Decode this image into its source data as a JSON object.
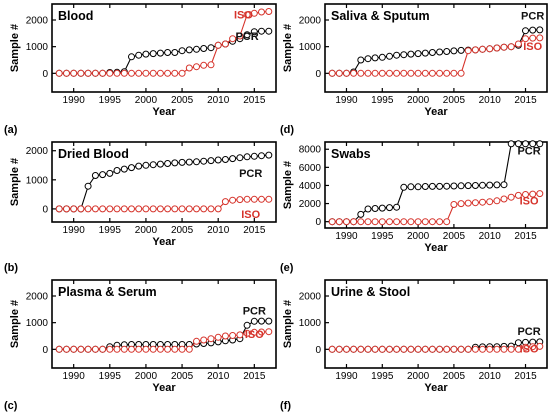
{
  "chart_data": [
    {
      "type": "line",
      "panel_label": "(a)",
      "title": "Blood",
      "xlabel": "Year",
      "ylabel": "Sample #",
      "xlim": [
        1987,
        2018
      ],
      "ylim": [
        -700,
        2600
      ],
      "xticks": [
        1990,
        1995,
        2000,
        2005,
        2010,
        2015
      ],
      "yticks": [
        0,
        1000,
        2000
      ],
      "x": [
        1988,
        1989,
        1990,
        1991,
        1992,
        1993,
        1994,
        1995,
        1996,
        1997,
        1998,
        1999,
        2000,
        2001,
        2002,
        2003,
        2004,
        2005,
        2006,
        2007,
        2008,
        2009,
        2010,
        2011,
        2012,
        2013,
        2014,
        2015,
        2016,
        2017
      ],
      "series": [
        {
          "name": "PCR",
          "color": "#000000",
          "values": [
            0,
            0,
            0,
            0,
            0,
            0,
            0,
            30,
            40,
            60,
            620,
            680,
            720,
            740,
            760,
            780,
            780,
            850,
            880,
            900,
            930,
            960,
            1050,
            1100,
            1200,
            1300,
            1450,
            1560,
            1580,
            1580
          ]
        },
        {
          "name": "ISO",
          "color": "#d6332b",
          "values": [
            0,
            0,
            0,
            0,
            0,
            0,
            0,
            0,
            0,
            0,
            0,
            0,
            0,
            0,
            0,
            0,
            0,
            0,
            200,
            250,
            300,
            320,
            1050,
            1100,
            1300,
            1400,
            2200,
            2250,
            2300,
            2320
          ]
        }
      ]
    },
    {
      "type": "line",
      "panel_label": "(b)",
      "title": "Dried Blood",
      "xlabel": "Year",
      "ylabel": "Sample #",
      "xlim": [
        1987,
        2018
      ],
      "ylim": [
        -450,
        2300
      ],
      "xticks": [
        1990,
        1995,
        2000,
        2005,
        2010,
        2015
      ],
      "yticks": [
        0,
        1000,
        2000
      ],
      "x": [
        1988,
        1989,
        1990,
        1991,
        1992,
        1993,
        1994,
        1995,
        1996,
        1997,
        1998,
        1999,
        2000,
        2001,
        2002,
        2003,
        2004,
        2005,
        2006,
        2007,
        2008,
        2009,
        2010,
        2011,
        2012,
        2013,
        2014,
        2015,
        2016,
        2017
      ],
      "series": [
        {
          "name": "PCR",
          "color": "#000000",
          "values": [
            0,
            0,
            0,
            0,
            780,
            1150,
            1180,
            1220,
            1320,
            1370,
            1420,
            1470,
            1500,
            1520,
            1540,
            1560,
            1580,
            1600,
            1610,
            1620,
            1640,
            1660,
            1680,
            1700,
            1730,
            1760,
            1790,
            1810,
            1830,
            1850
          ]
        },
        {
          "name": "ISO",
          "color": "#d6332b",
          "values": [
            0,
            0,
            0,
            0,
            0,
            0,
            0,
            0,
            0,
            0,
            0,
            0,
            0,
            0,
            0,
            0,
            0,
            0,
            0,
            0,
            0,
            0,
            0,
            250,
            300,
            320,
            330,
            330,
            330,
            330
          ]
        }
      ]
    },
    {
      "type": "line",
      "panel_label": "(c)",
      "title": "Plasma & Serum",
      "xlabel": "Year",
      "ylabel": "Sample #",
      "xlim": [
        1987,
        2018
      ],
      "ylim": [
        -700,
        2600
      ],
      "xticks": [
        1990,
        1995,
        2000,
        2005,
        2010,
        2015
      ],
      "yticks": [
        0,
        1000,
        2000
      ],
      "x": [
        1988,
        1989,
        1990,
        1991,
        1992,
        1993,
        1994,
        1995,
        1996,
        1997,
        1998,
        1999,
        2000,
        2001,
        2002,
        2003,
        2004,
        2005,
        2006,
        2007,
        2008,
        2009,
        2010,
        2011,
        2012,
        2013,
        2014,
        2015,
        2016,
        2017
      ],
      "series": [
        {
          "name": "PCR",
          "color": "#000000",
          "values": [
            0,
            0,
            0,
            0,
            0,
            0,
            0,
            100,
            150,
            170,
            180,
            180,
            180,
            180,
            180,
            180,
            180,
            180,
            180,
            200,
            220,
            240,
            280,
            320,
            350,
            400,
            900,
            1050,
            1060,
            1060
          ]
        },
        {
          "name": "ISO",
          "color": "#d6332b",
          "values": [
            0,
            0,
            0,
            0,
            0,
            0,
            0,
            0,
            0,
            0,
            0,
            0,
            0,
            0,
            0,
            0,
            0,
            0,
            0,
            300,
            350,
            400,
            450,
            500,
            520,
            540,
            600,
            640,
            650,
            660
          ]
        }
      ]
    },
    {
      "type": "line",
      "panel_label": "(d)",
      "title": "Saliva & Sputum",
      "xlabel": "Year",
      "ylabel": "Sample #",
      "xlim": [
        1987,
        2018
      ],
      "ylim": [
        -700,
        2600
      ],
      "xticks": [
        1990,
        1995,
        2000,
        2005,
        2010,
        2015
      ],
      "yticks": [
        0,
        1000,
        2000
      ],
      "x": [
        1988,
        1989,
        1990,
        1991,
        1992,
        1993,
        1994,
        1995,
        1996,
        1997,
        1998,
        1999,
        2000,
        2001,
        2002,
        2003,
        2004,
        2005,
        2006,
        2007,
        2008,
        2009,
        2010,
        2011,
        2012,
        2013,
        2014,
        2015,
        2016,
        2017
      ],
      "series": [
        {
          "name": "PCR",
          "color": "#000000",
          "values": [
            0,
            0,
            0,
            50,
            500,
            550,
            580,
            600,
            640,
            680,
            700,
            720,
            740,
            760,
            780,
            800,
            820,
            840,
            860,
            870,
            880,
            900,
            920,
            950,
            980,
            1000,
            1050,
            1600,
            1620,
            1630
          ]
        },
        {
          "name": "ISO",
          "color": "#d6332b",
          "values": [
            0,
            0,
            0,
            0,
            0,
            0,
            0,
            0,
            0,
            0,
            0,
            0,
            0,
            0,
            0,
            0,
            0,
            0,
            0,
            850,
            880,
            900,
            920,
            950,
            980,
            1000,
            1100,
            1300,
            1320,
            1330
          ]
        }
      ]
    },
    {
      "type": "line",
      "panel_label": "(e)",
      "title": "Swabs",
      "xlabel": "Year",
      "ylabel": "Sample #",
      "xlim": [
        1987,
        2018
      ],
      "ylim": [
        -700,
        8800
      ],
      "xticks": [
        1990,
        1995,
        2000,
        2005,
        2010,
        2015
      ],
      "yticks": [
        0,
        2000,
        4000,
        6000,
        8000
      ],
      "x": [
        1988,
        1989,
        1990,
        1991,
        1992,
        1993,
        1994,
        1995,
        1996,
        1997,
        1998,
        1999,
        2000,
        2001,
        2002,
        2003,
        2004,
        2005,
        2006,
        2007,
        2008,
        2009,
        2010,
        2011,
        2012,
        2013,
        2014,
        2015,
        2016,
        2017
      ],
      "series": [
        {
          "name": "PCR",
          "color": "#000000",
          "values": [
            0,
            0,
            0,
            0,
            800,
            1400,
            1450,
            1500,
            1550,
            1600,
            3800,
            3850,
            3850,
            3880,
            3900,
            3900,
            3920,
            3940,
            3960,
            3980,
            4000,
            4020,
            4040,
            4060,
            4080,
            8600,
            8600,
            8600,
            8600,
            8600
          ]
        },
        {
          "name": "ISO",
          "color": "#d6332b",
          "values": [
            0,
            0,
            0,
            0,
            0,
            0,
            0,
            0,
            0,
            0,
            0,
            0,
            0,
            0,
            0,
            0,
            0,
            1900,
            2000,
            2050,
            2100,
            2150,
            2200,
            2300,
            2500,
            2700,
            2900,
            3000,
            3050,
            3100
          ]
        }
      ]
    },
    {
      "type": "line",
      "panel_label": "(f)",
      "title": "Urine & Stool",
      "xlabel": "Year",
      "ylabel": "Sample #",
      "xlim": [
        1987,
        2018
      ],
      "ylim": [
        -700,
        2600
      ],
      "xticks": [
        1990,
        1995,
        2000,
        2005,
        2010,
        2015
      ],
      "yticks": [
        0,
        1000,
        2000
      ],
      "x": [
        1988,
        1989,
        1990,
        1991,
        1992,
        1993,
        1994,
        1995,
        1996,
        1997,
        1998,
        1999,
        2000,
        2001,
        2002,
        2003,
        2004,
        2005,
        2006,
        2007,
        2008,
        2009,
        2010,
        2011,
        2012,
        2013,
        2014,
        2015,
        2016,
        2017
      ],
      "series": [
        {
          "name": "PCR",
          "color": "#000000",
          "values": [
            0,
            0,
            0,
            0,
            0,
            0,
            0,
            0,
            0,
            0,
            0,
            0,
            0,
            0,
            0,
            0,
            0,
            0,
            0,
            0,
            80,
            90,
            100,
            100,
            110,
            120,
            250,
            260,
            270,
            280
          ]
        },
        {
          "name": "ISO",
          "color": "#d6332b",
          "values": [
            0,
            0,
            0,
            0,
            0,
            0,
            0,
            0,
            0,
            0,
            0,
            0,
            0,
            0,
            0,
            0,
            0,
            0,
            0,
            0,
            0,
            0,
            0,
            0,
            0,
            0,
            0,
            80,
            100,
            110
          ]
        }
      ]
    }
  ]
}
